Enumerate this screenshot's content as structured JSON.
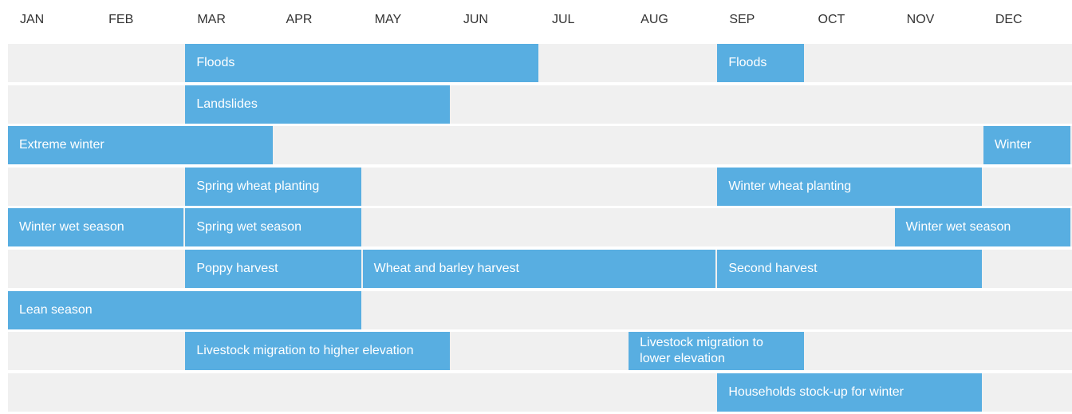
{
  "chart_data": {
    "type": "timeline",
    "categories": [
      "JAN",
      "FEB",
      "MAR",
      "APR",
      "MAY",
      "JUN",
      "JUL",
      "AUG",
      "SEP",
      "OCT",
      "NOV",
      "DEC"
    ],
    "xlim": [
      0,
      12
    ],
    "color": "#58aee1",
    "rows": [
      {
        "bars": [
          {
            "label": "Floods",
            "start": 2,
            "end": 6
          },
          {
            "label": "Floods",
            "start": 8,
            "end": 9
          }
        ]
      },
      {
        "bars": [
          {
            "label": "Landslides",
            "start": 2,
            "end": 5
          }
        ]
      },
      {
        "bars": [
          {
            "label": "Extreme winter",
            "start": 0,
            "end": 3
          },
          {
            "label": "Winter",
            "start": 11,
            "end": 12
          }
        ]
      },
      {
        "bars": [
          {
            "label": "Spring wheat planting",
            "start": 2,
            "end": 4
          },
          {
            "label": "Winter wheat planting",
            "start": 8,
            "end": 11
          }
        ]
      },
      {
        "bars": [
          {
            "label": "Winter wet season",
            "start": 0,
            "end": 2
          },
          {
            "label": "Spring wet season",
            "start": 2,
            "end": 4
          },
          {
            "label": "Winter wet season",
            "start": 10,
            "end": 12
          }
        ]
      },
      {
        "bars": [
          {
            "label": "Poppy harvest",
            "start": 2,
            "end": 4
          },
          {
            "label": "Wheat and barley harvest",
            "start": 4,
            "end": 8
          },
          {
            "label": "Second harvest",
            "start": 8,
            "end": 11
          }
        ]
      },
      {
        "bars": [
          {
            "label": "Lean season",
            "start": 0,
            "end": 4
          }
        ]
      },
      {
        "bars": [
          {
            "label": "Livestock migration to higher elevation",
            "start": 2,
            "end": 5
          },
          {
            "label": "Livestock migration to lower elevation",
            "start": 7,
            "end": 9
          }
        ]
      },
      {
        "bars": [
          {
            "label": "Households stock-up for winter",
            "start": 8,
            "end": 11
          }
        ]
      }
    ]
  }
}
